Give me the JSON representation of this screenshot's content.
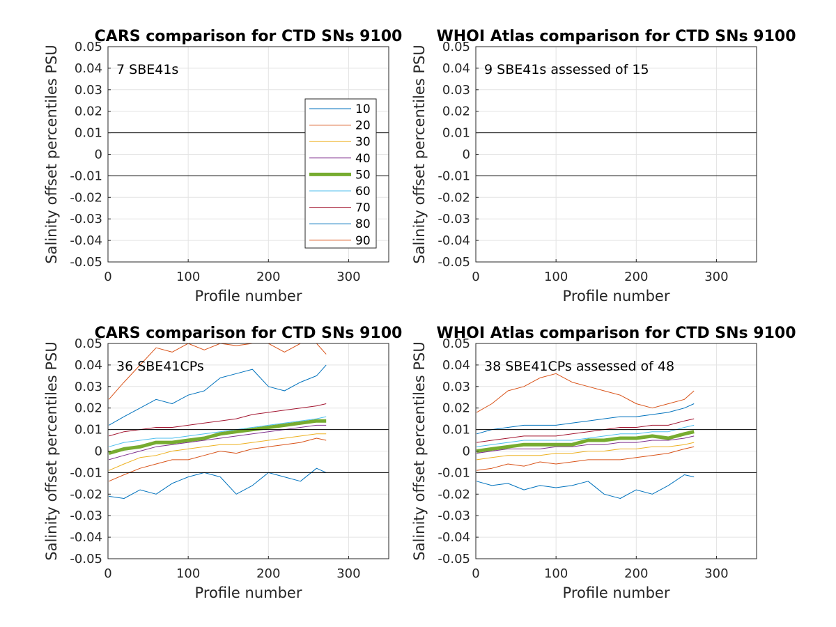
{
  "figure": {
    "legend_title_note": "",
    "colors": {
      "p10": "#0072BD",
      "p20": "#D95319",
      "p30": "#EDB120",
      "p40": "#7E2F8E",
      "p50": "#77AC30",
      "p60": "#4DBEEE",
      "p70": "#A2142F",
      "p80": "#0072BD",
      "p90": "#D95319"
    }
  },
  "chart_data": [
    {
      "type": "line",
      "title": "CARS comparison for CTD SNs 9100",
      "xlabel": "Profile number",
      "ylabel": "Salinity offset percentiles PSU",
      "annotation": "7 SBE41s",
      "xlim": [
        0,
        350
      ],
      "ylim": [
        -0.05,
        0.05
      ],
      "xticks": [
        "0",
        "100",
        "200",
        "300"
      ],
      "yticks": [
        "0.05",
        "0.04",
        "0.03",
        "0.02",
        "0.01",
        "0",
        "-0.01",
        "-0.02",
        "-0.03",
        "-0.04",
        "-0.05"
      ],
      "grid": true,
      "reference_lines": [
        0.01,
        -0.01
      ],
      "legend": {
        "placement": "right",
        "entries": [
          "10",
          "20",
          "30",
          "40",
          "50",
          "60",
          "70",
          "80",
          "90"
        ]
      },
      "series": []
    },
    {
      "type": "line",
      "title": "WHOI Atlas comparison for CTD SNs 9100",
      "xlabel": "Profile number",
      "ylabel": "Salinity offset percentiles PSU",
      "annotation": "9 SBE41s assessed of 15",
      "xlim": [
        0,
        350
      ],
      "ylim": [
        -0.05,
        0.05
      ],
      "xticks": [
        "0",
        "100",
        "200",
        "300"
      ],
      "yticks": [
        "0.05",
        "0.04",
        "0.03",
        "0.02",
        "0.01",
        "0",
        "-0.01",
        "-0.02",
        "-0.03",
        "-0.04",
        "-0.05"
      ],
      "grid": true,
      "reference_lines": [
        0.01,
        -0.01
      ],
      "series": []
    },
    {
      "type": "line",
      "title": "CARS comparison for CTD SNs 9100",
      "xlabel": "Profile number",
      "ylabel": "Salinity offset percentiles PSU",
      "annotation": "36 SBE41CPs",
      "xlim": [
        0,
        350
      ],
      "ylim": [
        -0.05,
        0.05
      ],
      "xticks": [
        "0",
        "100",
        "200",
        "300"
      ],
      "yticks": [
        "0.05",
        "0.04",
        "0.03",
        "0.02",
        "0.01",
        "0",
        "-0.01",
        "-0.02",
        "-0.03",
        "-0.04",
        "-0.05"
      ],
      "grid": true,
      "reference_lines": [
        0.01,
        -0.01
      ],
      "x": [
        1,
        20,
        40,
        60,
        80,
        100,
        120,
        140,
        160,
        180,
        200,
        220,
        240,
        260,
        272
      ],
      "series": [
        {
          "name": "10",
          "color": "#0072BD",
          "width": 1,
          "values": [
            -0.021,
            -0.022,
            -0.018,
            -0.02,
            -0.015,
            -0.012,
            -0.01,
            -0.012,
            -0.02,
            -0.016,
            -0.01,
            -0.012,
            -0.014,
            -0.008,
            -0.01
          ]
        },
        {
          "name": "20",
          "color": "#D95319",
          "width": 1,
          "values": [
            -0.014,
            -0.011,
            -0.008,
            -0.006,
            -0.004,
            -0.004,
            -0.002,
            0.0,
            -0.001,
            0.001,
            0.002,
            0.003,
            0.004,
            0.006,
            0.005
          ]
        },
        {
          "name": "30",
          "color": "#EDB120",
          "width": 1,
          "values": [
            -0.009,
            -0.006,
            -0.003,
            -0.002,
            0.0,
            0.001,
            0.002,
            0.003,
            0.003,
            0.004,
            0.005,
            0.006,
            0.007,
            0.008,
            0.008
          ]
        },
        {
          "name": "40",
          "color": "#7E2F8E",
          "width": 1,
          "values": [
            -0.004,
            -0.002,
            0.0,
            0.002,
            0.003,
            0.004,
            0.005,
            0.006,
            0.007,
            0.008,
            0.009,
            0.01,
            0.011,
            0.012,
            0.012
          ]
        },
        {
          "name": "50",
          "color": "#77AC30",
          "width": 5,
          "values": [
            -0.001,
            0.001,
            0.002,
            0.004,
            0.004,
            0.005,
            0.006,
            0.008,
            0.009,
            0.01,
            0.011,
            0.012,
            0.013,
            0.014,
            0.014
          ]
        },
        {
          "name": "60",
          "color": "#4DBEEE",
          "width": 1,
          "values": [
            0.002,
            0.004,
            0.005,
            0.006,
            0.006,
            0.007,
            0.008,
            0.009,
            0.01,
            0.011,
            0.012,
            0.013,
            0.014,
            0.015,
            0.016
          ]
        },
        {
          "name": "70",
          "color": "#A2142F",
          "width": 1,
          "values": [
            0.007,
            0.009,
            0.01,
            0.011,
            0.011,
            0.012,
            0.013,
            0.014,
            0.015,
            0.017,
            0.018,
            0.019,
            0.02,
            0.021,
            0.022
          ]
        },
        {
          "name": "80",
          "color": "#0072BD",
          "width": 1,
          "values": [
            0.012,
            0.016,
            0.02,
            0.024,
            0.022,
            0.026,
            0.028,
            0.034,
            0.036,
            0.038,
            0.03,
            0.028,
            0.032,
            0.035,
            0.04
          ]
        },
        {
          "name": "90",
          "color": "#D95319",
          "width": 1,
          "values": [
            0.024,
            0.032,
            0.04,
            0.048,
            0.046,
            0.05,
            0.047,
            0.05,
            0.049,
            0.05,
            0.05,
            0.046,
            0.05,
            0.05,
            0.045
          ]
        }
      ]
    },
    {
      "type": "line",
      "title": "WHOI Atlas comparison for CTD SNs 9100",
      "xlabel": "Profile number",
      "ylabel": "Salinity offset percentiles PSU",
      "annotation": "38 SBE41CPs assessed of 48",
      "xlim": [
        0,
        350
      ],
      "ylim": [
        -0.05,
        0.05
      ],
      "xticks": [
        "0",
        "100",
        "200",
        "300"
      ],
      "yticks": [
        "0.05",
        "0.04",
        "0.03",
        "0.02",
        "0.01",
        "0",
        "-0.01",
        "-0.02",
        "-0.03",
        "-0.04",
        "-0.05"
      ],
      "grid": true,
      "reference_lines": [
        0.01,
        -0.01
      ],
      "x": [
        1,
        20,
        40,
        60,
        80,
        100,
        120,
        140,
        160,
        180,
        200,
        220,
        240,
        260,
        272
      ],
      "series": [
        {
          "name": "10",
          "color": "#0072BD",
          "width": 1,
          "values": [
            -0.014,
            -0.016,
            -0.015,
            -0.018,
            -0.016,
            -0.017,
            -0.016,
            -0.014,
            -0.02,
            -0.022,
            -0.018,
            -0.02,
            -0.016,
            -0.011,
            -0.012
          ]
        },
        {
          "name": "20",
          "color": "#D95319",
          "width": 1,
          "values": [
            -0.009,
            -0.008,
            -0.006,
            -0.007,
            -0.005,
            -0.006,
            -0.005,
            -0.004,
            -0.004,
            -0.004,
            -0.003,
            -0.002,
            -0.001,
            0.001,
            0.002
          ]
        },
        {
          "name": "30",
          "color": "#EDB120",
          "width": 1,
          "values": [
            -0.004,
            -0.003,
            -0.002,
            -0.002,
            -0.002,
            -0.001,
            -0.001,
            0.0,
            0.0,
            0.001,
            0.001,
            0.002,
            0.002,
            0.003,
            0.004
          ]
        },
        {
          "name": "40",
          "color": "#7E2F8E",
          "width": 1,
          "values": [
            -0.001,
            0.0,
            0.001,
            0.001,
            0.001,
            0.002,
            0.002,
            0.003,
            0.003,
            0.004,
            0.004,
            0.005,
            0.005,
            0.006,
            0.007
          ]
        },
        {
          "name": "50",
          "color": "#77AC30",
          "width": 5,
          "values": [
            0.0,
            0.001,
            0.002,
            0.003,
            0.003,
            0.003,
            0.003,
            0.005,
            0.005,
            0.006,
            0.006,
            0.007,
            0.006,
            0.008,
            0.009
          ]
        },
        {
          "name": "60",
          "color": "#4DBEEE",
          "width": 1,
          "values": [
            0.002,
            0.003,
            0.004,
            0.005,
            0.005,
            0.005,
            0.005,
            0.006,
            0.007,
            0.008,
            0.008,
            0.009,
            0.009,
            0.011,
            0.012
          ]
        },
        {
          "name": "70",
          "color": "#A2142F",
          "width": 1,
          "values": [
            0.004,
            0.005,
            0.006,
            0.007,
            0.007,
            0.007,
            0.008,
            0.009,
            0.01,
            0.011,
            0.011,
            0.012,
            0.012,
            0.014,
            0.015
          ]
        },
        {
          "name": "80",
          "color": "#0072BD",
          "width": 1,
          "values": [
            0.008,
            0.01,
            0.011,
            0.012,
            0.012,
            0.012,
            0.013,
            0.014,
            0.015,
            0.016,
            0.016,
            0.017,
            0.018,
            0.02,
            0.022
          ]
        },
        {
          "name": "90",
          "color": "#D95319",
          "width": 1,
          "values": [
            0.018,
            0.022,
            0.028,
            0.03,
            0.034,
            0.036,
            0.032,
            0.03,
            0.028,
            0.026,
            0.022,
            0.02,
            0.022,
            0.024,
            0.028
          ]
        }
      ]
    }
  ]
}
